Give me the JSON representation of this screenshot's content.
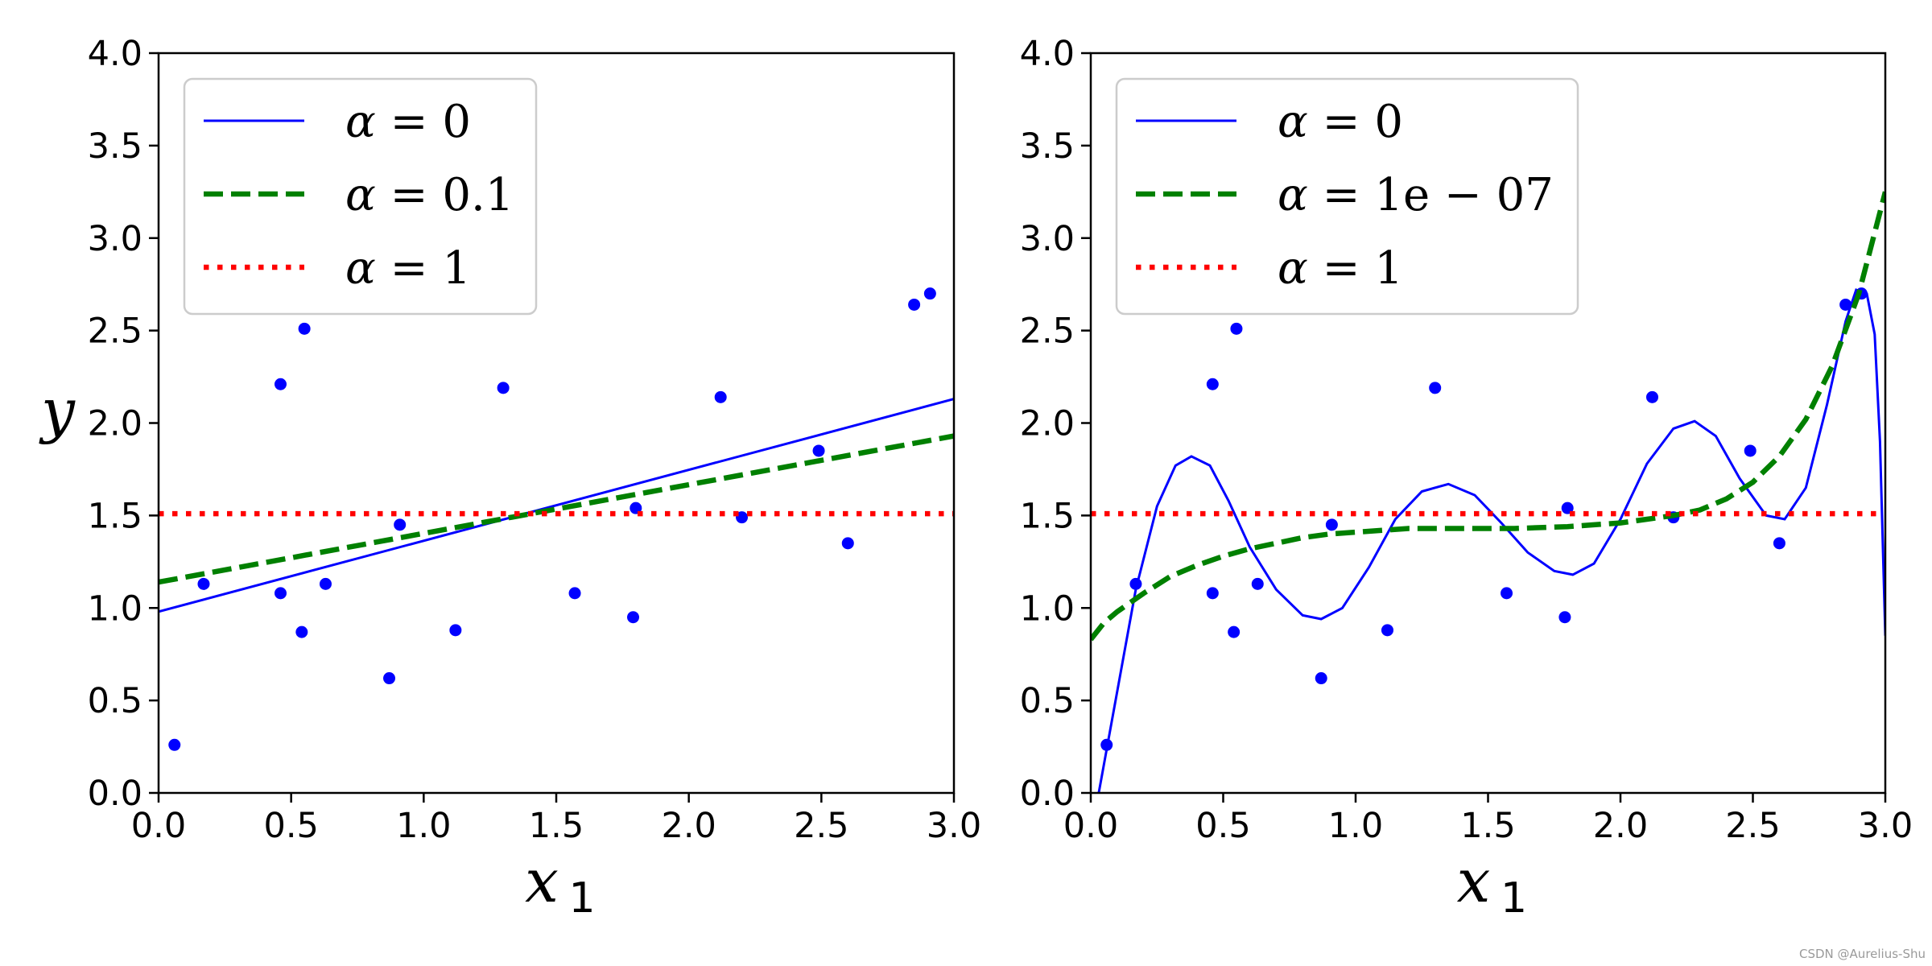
{
  "chart_data": [
    {
      "type": "line",
      "xlabel": "x1",
      "ylabel": "y",
      "xlim": [
        0,
        3
      ],
      "ylim": [
        0,
        4
      ],
      "xticks": [
        "0.0",
        "0.5",
        "1.0",
        "1.5",
        "2.0",
        "2.5",
        "3.0"
      ],
      "yticks": [
        "0.0",
        "0.5",
        "1.0",
        "1.5",
        "2.0",
        "2.5",
        "3.0",
        "3.5",
        "4.0"
      ],
      "legend_position": "upper-left",
      "scatter": {
        "color": "#0000ff",
        "x": [
          0.06,
          0.17,
          0.46,
          0.46,
          0.54,
          0.55,
          0.63,
          0.87,
          0.91,
          1.12,
          1.3,
          1.57,
          1.79,
          1.8,
          2.12,
          2.2,
          2.49,
          2.6,
          2.85,
          2.91
        ],
        "y": [
          0.26,
          1.13,
          2.21,
          1.08,
          0.87,
          2.51,
          1.13,
          0.62,
          1.45,
          0.88,
          2.19,
          1.08,
          0.95,
          1.54,
          2.14,
          1.49,
          1.85,
          1.35,
          2.64,
          2.7
        ]
      },
      "series": [
        {
          "name": "α = 0",
          "alpha": "0",
          "style": "solid",
          "color": "#0000ff",
          "x": [
            0,
            3
          ],
          "y": [
            0.98,
            2.13
          ]
        },
        {
          "name": "α = 0.1",
          "alpha": "0.1",
          "style": "dashed",
          "color": "#008000",
          "x": [
            0,
            3
          ],
          "y": [
            1.14,
            1.93
          ]
        },
        {
          "name": "α = 1",
          "alpha": "1",
          "style": "dotted",
          "color": "#ff0000",
          "x": [
            0,
            3
          ],
          "y": [
            1.51,
            1.51
          ]
        }
      ]
    },
    {
      "type": "line",
      "xlabel": "x1",
      "ylabel": "",
      "xlim": [
        0,
        3
      ],
      "ylim": [
        0,
        4
      ],
      "xticks": [
        "0.0",
        "0.5",
        "1.0",
        "1.5",
        "2.0",
        "2.5",
        "3.0"
      ],
      "yticks": [
        "0.0",
        "0.5",
        "1.0",
        "1.5",
        "2.0",
        "2.5",
        "3.0",
        "3.5",
        "4.0"
      ],
      "legend_position": "upper-left",
      "scatter": {
        "color": "#0000ff",
        "x": [
          0.06,
          0.17,
          0.46,
          0.46,
          0.54,
          0.55,
          0.63,
          0.87,
          0.91,
          1.12,
          1.3,
          1.57,
          1.79,
          1.8,
          2.12,
          2.2,
          2.49,
          2.6,
          2.85,
          2.91
        ],
        "y": [
          0.26,
          1.13,
          2.21,
          1.08,
          0.87,
          2.51,
          1.13,
          0.62,
          1.45,
          0.88,
          2.19,
          1.08,
          0.95,
          1.54,
          2.14,
          1.49,
          1.85,
          1.35,
          2.64,
          2.7
        ]
      },
      "series": [
        {
          "name": "α = 0",
          "alpha": "0",
          "style": "solid",
          "color": "#0000ff",
          "x": [
            0.03,
            0.1,
            0.17,
            0.25,
            0.32,
            0.38,
            0.45,
            0.52,
            0.6,
            0.7,
            0.8,
            0.87,
            0.95,
            1.05,
            1.15,
            1.25,
            1.35,
            1.45,
            1.55,
            1.65,
            1.75,
            1.82,
            1.9,
            2.0,
            2.1,
            2.2,
            2.28,
            2.36,
            2.45,
            2.55,
            2.62,
            2.7,
            2.78,
            2.85,
            2.89,
            2.93,
            2.96,
            2.98,
            3.0
          ],
          "y": [
            0.0,
            0.55,
            1.1,
            1.55,
            1.77,
            1.82,
            1.77,
            1.58,
            1.33,
            1.1,
            0.96,
            0.94,
            1.0,
            1.22,
            1.48,
            1.63,
            1.67,
            1.61,
            1.46,
            1.3,
            1.2,
            1.18,
            1.24,
            1.48,
            1.78,
            1.97,
            2.01,
            1.93,
            1.7,
            1.5,
            1.48,
            1.65,
            2.1,
            2.55,
            2.72,
            2.7,
            2.48,
            1.9,
            0.85
          ]
        },
        {
          "name": "α = 1e − 07",
          "alpha": "1e − 07",
          "style": "dashed",
          "color": "#008000",
          "x": [
            0,
            0.05,
            0.1,
            0.2,
            0.3,
            0.4,
            0.5,
            0.6,
            0.7,
            0.8,
            0.9,
            1.0,
            1.2,
            1.4,
            1.6,
            1.8,
            2.0,
            2.1,
            2.2,
            2.3,
            2.4,
            2.5,
            2.6,
            2.7,
            2.8,
            2.9,
            3.0
          ],
          "y": [
            0.83,
            0.92,
            0.98,
            1.08,
            1.17,
            1.23,
            1.28,
            1.32,
            1.35,
            1.38,
            1.4,
            1.41,
            1.43,
            1.43,
            1.43,
            1.44,
            1.46,
            1.48,
            1.5,
            1.53,
            1.59,
            1.68,
            1.82,
            2.02,
            2.31,
            2.7,
            3.25
          ]
        },
        {
          "name": "α = 1",
          "alpha": "1",
          "style": "dotted",
          "color": "#ff0000",
          "x": [
            0,
            3
          ],
          "y": [
            1.51,
            1.51
          ]
        }
      ]
    }
  ],
  "watermark": "CSDN @Aurelius-Shu"
}
